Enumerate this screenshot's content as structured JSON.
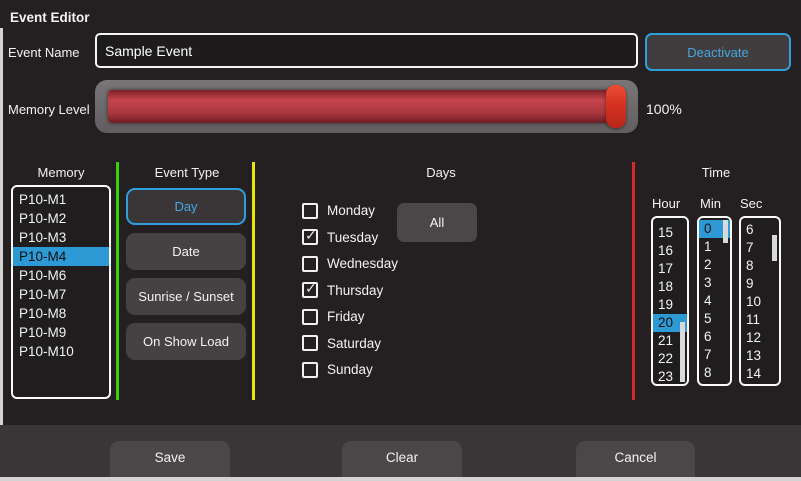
{
  "title": "Event Editor",
  "event_name": {
    "label": "Event Name",
    "value": "Sample Event"
  },
  "deactivate_button_label": "Deactivate",
  "memory_level": {
    "label": "Memory Level",
    "percent_text": "100%",
    "value_percent": 100
  },
  "memory": {
    "header": "Memory",
    "items": [
      "P10-M1",
      "P10-M2",
      "P10-M3",
      "P10-M4",
      "P10-M6",
      "P10-M7",
      "P10-M8",
      "P10-M9",
      "P10-M10"
    ],
    "selected_index": 3,
    "selected_value": "P10-M4"
  },
  "event_type": {
    "header": "Event Type",
    "options": [
      {
        "label": "Day",
        "active": true
      },
      {
        "label": "Date",
        "active": false
      },
      {
        "label": "Sunrise / Sunset",
        "active": false
      },
      {
        "label": "On Show Load",
        "active": false
      }
    ]
  },
  "days": {
    "header": "Days",
    "all_button_label": "All",
    "checkboxes": [
      {
        "label": "Monday",
        "checked": false
      },
      {
        "label": "Tuesday",
        "checked": true
      },
      {
        "label": "Wednesday",
        "checked": false
      },
      {
        "label": "Thursday",
        "checked": true
      },
      {
        "label": "Friday",
        "checked": false
      },
      {
        "label": "Saturday",
        "checked": false
      },
      {
        "label": "Sunday",
        "checked": false
      }
    ]
  },
  "time": {
    "header": "Time",
    "columns": [
      {
        "label": "Hour",
        "values": [
          "15",
          "16",
          "17",
          "18",
          "19",
          "20",
          "21",
          "22",
          "23"
        ],
        "selected": "20"
      },
      {
        "label": "Min",
        "values": [
          "0",
          "1",
          "2",
          "3",
          "4",
          "5",
          "6",
          "7",
          "8"
        ],
        "selected": "0"
      },
      {
        "label": "Sec",
        "values": [
          "6",
          "7",
          "8",
          "9",
          "10",
          "11",
          "12",
          "13",
          "14"
        ],
        "selected": null
      }
    ]
  },
  "footer": {
    "save_label": "Save",
    "clear_label": "Clear",
    "cancel_label": "Cancel"
  },
  "icons": {
    "checkbox_check": "✓"
  },
  "colors": {
    "blue_accent": "#2f9fdc",
    "selection_blue": "#2e9ad5",
    "divider_green": "#33d400",
    "divider_yellow": "#e6e600",
    "divider_red": "#d22b2b",
    "memory_bar_red": "#ab363e",
    "handle_red": "#d63222"
  }
}
